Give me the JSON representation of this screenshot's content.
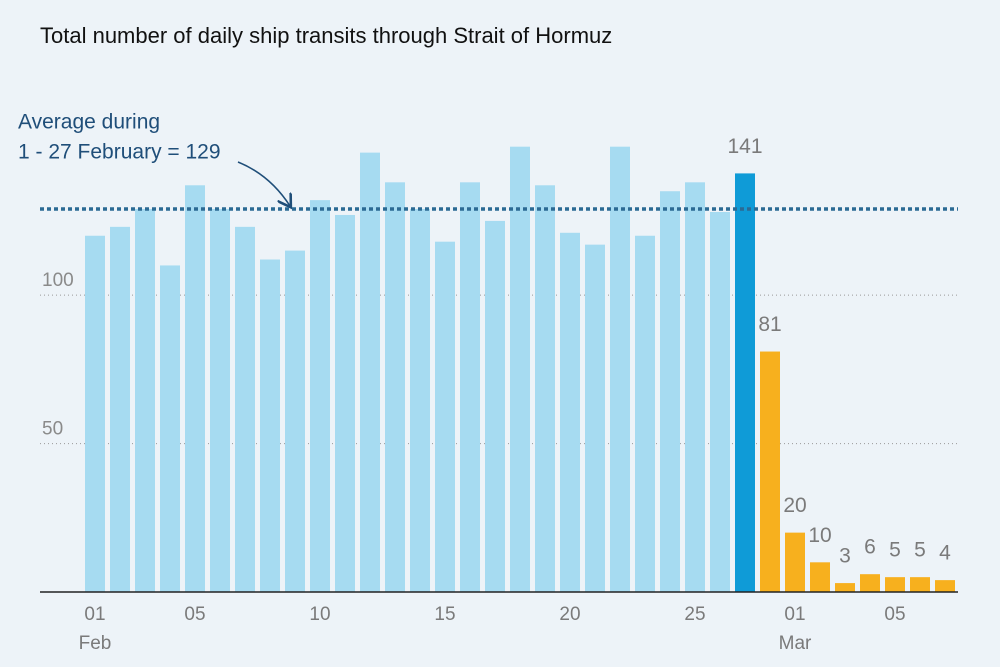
{
  "chart_data": {
    "type": "bar",
    "title": "Total number of daily ship transits through Strait of Hormuz",
    "categories": [
      "01",
      null,
      null,
      null,
      "05",
      null,
      null,
      null,
      null,
      "10",
      null,
      null,
      null,
      null,
      "15",
      null,
      null,
      null,
      null,
      "20",
      null,
      null,
      null,
      null,
      "25",
      null,
      null,
      null,
      "01",
      null,
      null,
      null,
      "05",
      null,
      null
    ],
    "category_groups": [
      {
        "name": "Feb",
        "start": 0
      },
      {
        "name": "Mar",
        "start": 28
      }
    ],
    "values": [
      120,
      123,
      129,
      110,
      137,
      129,
      123,
      112,
      115,
      132,
      127,
      148,
      138,
      129,
      118,
      138,
      125,
      150,
      137,
      121,
      117,
      150,
      120,
      135,
      138,
      128,
      141,
      81,
      20,
      10,
      3,
      6,
      5,
      5,
      4
    ],
    "colors": [
      "#a6dbf1",
      "#a6dbf1",
      "#a6dbf1",
      "#a6dbf1",
      "#a6dbf1",
      "#a6dbf1",
      "#a6dbf1",
      "#a6dbf1",
      "#a6dbf1",
      "#a6dbf1",
      "#a6dbf1",
      "#a6dbf1",
      "#a6dbf1",
      "#a6dbf1",
      "#a6dbf1",
      "#a6dbf1",
      "#a6dbf1",
      "#a6dbf1",
      "#a6dbf1",
      "#a6dbf1",
      "#a6dbf1",
      "#a6dbf1",
      "#a6dbf1",
      "#a6dbf1",
      "#a6dbf1",
      "#a6dbf1",
      "#0f9bd7",
      "#f7b01e",
      "#f7b01e",
      "#f7b01e",
      "#f7b01e",
      "#f7b01e",
      "#f7b01e",
      "#f7b01e",
      "#f7b01e"
    ],
    "label_highlighted": true,
    "reference_line": {
      "value": 129,
      "label": [
        "Average during",
        "1 - 27 February = 129"
      ],
      "color": "#2b6a94"
    },
    "ylim": [
      0,
      160
    ],
    "yticks": [
      50,
      100
    ],
    "grid": true
  }
}
